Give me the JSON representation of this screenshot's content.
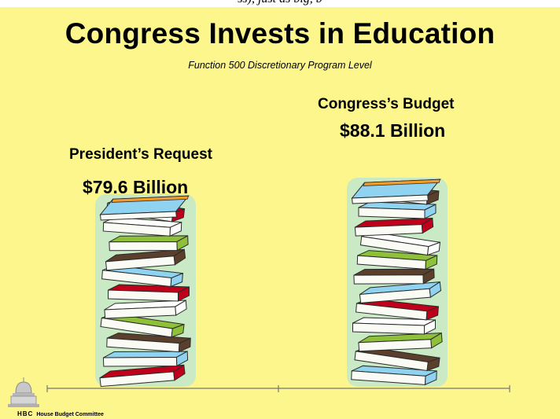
{
  "header_fragment": "ss), just as big, b",
  "chart_data": {
    "type": "bar",
    "title": "Congress Invests in Education",
    "subtitle": "Function 500 Discretionary Program Level",
    "categories": [
      "President’s Request",
      "Congress’s Budget"
    ],
    "values": [
      79.6,
      88.1
    ],
    "value_labels": [
      "$79.6 Billion",
      "$88.1 Billion"
    ],
    "units": "Billion",
    "mark": "stacked-books",
    "grid": false,
    "legend": "none"
  },
  "footer": {
    "abbr": "HBC",
    "org": "House Budget Committee",
    "logo_icon": "capitol-dome-icon"
  },
  "colors": {
    "background": "#fdf68c",
    "book_covers": [
      "#c0001a",
      "#8fd3f0",
      "#5a3f2c",
      "#8fc03a",
      "#ffffff"
    ],
    "book_glow": "#9fe0f4",
    "axis": "#777777"
  }
}
